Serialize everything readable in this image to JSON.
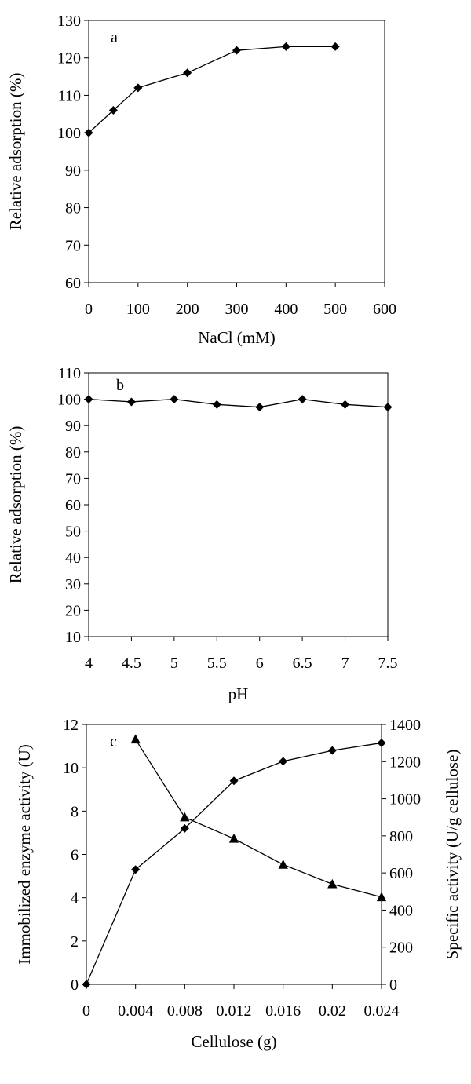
{
  "chart_data": [
    {
      "type": "line",
      "panel_label": "a",
      "xlabel": "NaCl (mM)",
      "ylabel": "Relative adsorption (%)",
      "xlim": [
        0,
        600
      ],
      "ylim": [
        60,
        130
      ],
      "xticks": [
        0,
        100,
        200,
        300,
        400,
        500,
        600
      ],
      "yticks": [
        60,
        70,
        80,
        90,
        100,
        110,
        120,
        130
      ],
      "grid": false,
      "series": [
        {
          "name": "Relative adsorption",
          "marker": "diamond",
          "x": [
            0,
            50,
            100,
            200,
            300,
            400,
            500
          ],
          "y": [
            100,
            106,
            112,
            116,
            122,
            123,
            123
          ]
        }
      ]
    },
    {
      "type": "line",
      "panel_label": "b",
      "xlabel": "pH",
      "ylabel": "Relative adsorption (%)",
      "xlim": [
        4,
        7.5
      ],
      "ylim": [
        10,
        110
      ],
      "xticks": [
        "4",
        "4.5",
        "5",
        "5.5",
        "6",
        "6.5",
        "7",
        "7.5"
      ],
      "yticks": [
        10,
        20,
        30,
        40,
        50,
        60,
        70,
        80,
        90,
        100,
        110
      ],
      "grid": false,
      "series": [
        {
          "name": "Relative adsorption",
          "marker": "diamond",
          "x": [
            4,
            4.5,
            5,
            5.5,
            6,
            6.5,
            7,
            7.5
          ],
          "y": [
            100,
            99,
            100,
            98,
            97,
            100,
            98,
            97
          ]
        }
      ]
    },
    {
      "type": "line",
      "panel_label": "c",
      "xlabel": "Cellulose (g)",
      "ylabel": "Immobilized enzyme activity (U)",
      "y2label": "Specific activity (U/g cellulose)",
      "xlim": [
        0,
        0.024
      ],
      "ylim": [
        0,
        12
      ],
      "y2lim": [
        0,
        1400
      ],
      "xticks": [
        "0",
        "0.004",
        "0.008",
        "0.012",
        "0.016",
        "0.02",
        "0.024"
      ],
      "yticks": [
        0,
        2,
        4,
        6,
        8,
        10,
        12
      ],
      "y2ticks": [
        0,
        200,
        400,
        600,
        800,
        1000,
        1200,
        1400
      ],
      "grid": false,
      "series": [
        {
          "name": "Immobilized enzyme activity",
          "axis": "left",
          "marker": "diamond",
          "x": [
            0,
            0.004,
            0.008,
            0.012,
            0.016,
            0.02,
            0.024
          ],
          "y": [
            0,
            5.3,
            7.2,
            9.4,
            10.3,
            10.8,
            11.15
          ]
        },
        {
          "name": "Specific activity",
          "axis": "right",
          "marker": "triangle",
          "x": [
            0.004,
            0.008,
            0.012,
            0.016,
            0.02,
            0.024
          ],
          "y": [
            1320,
            900,
            785,
            645,
            540,
            470
          ]
        }
      ]
    }
  ]
}
